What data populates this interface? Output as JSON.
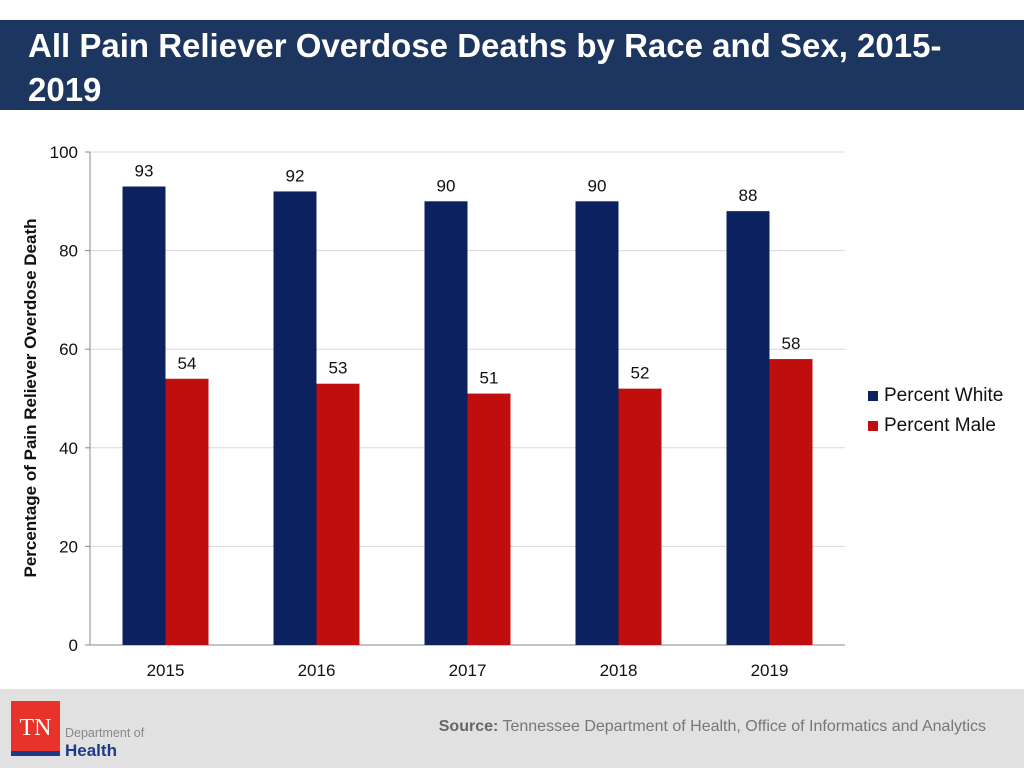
{
  "title": "All Pain Reliever Overdose Deaths by Race and Sex, 2015-2019",
  "chart_data": {
    "type": "bar",
    "categories": [
      "2015",
      "2016",
      "2017",
      "2018",
      "2019"
    ],
    "series": [
      {
        "name": "Percent White",
        "color": "#0c2160",
        "values": [
          93,
          92,
          90,
          90,
          88
        ]
      },
      {
        "name": "Percent Male",
        "color": "#c00d0d",
        "values": [
          54,
          53,
          51,
          52,
          58
        ]
      }
    ],
    "ylabel": "Percentage of Pain Reliever Overdose Death",
    "ylim": [
      0,
      100
    ],
    "yticks": [
      0,
      20,
      40,
      60,
      80,
      100
    ],
    "grid": true,
    "legend": "right"
  },
  "footer": {
    "source_label": "Source:",
    "source_text": "Tennessee Department of Health, Office of Informatics and Analytics",
    "logo": {
      "mark": "TN",
      "line1": "Department of",
      "line2": "Health"
    }
  }
}
